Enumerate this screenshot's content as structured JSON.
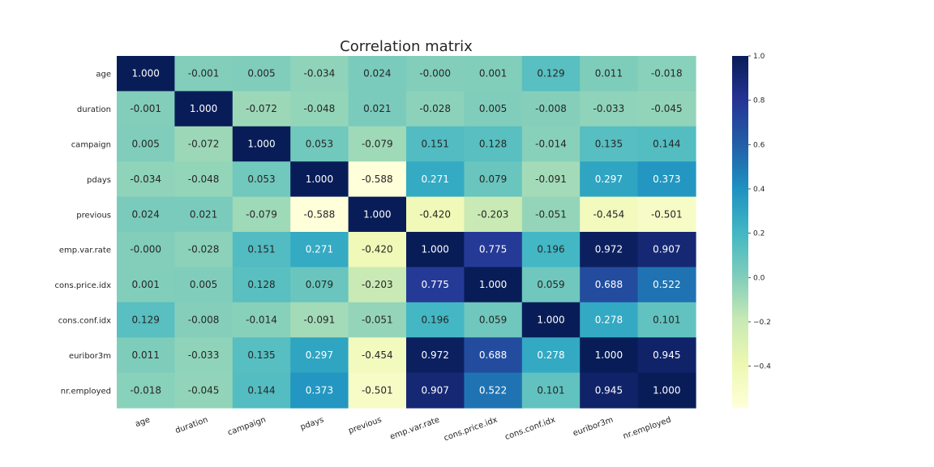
{
  "chart_data": {
    "type": "heatmap",
    "title": "Correlation matrix",
    "labels": [
      "age",
      "duration",
      "campaign",
      "pdays",
      "previous",
      "emp.var.rate",
      "cons.price.idx",
      "cons.conf.idx",
      "euribor3m",
      "nr.employed"
    ],
    "cell_text": [
      [
        "1.000",
        "-0.001",
        "0.005",
        "-0.034",
        "0.024",
        "-0.000",
        "0.001",
        "0.129",
        "0.011",
        "-0.018"
      ],
      [
        "-0.001",
        "1.000",
        "-0.072",
        "-0.048",
        "0.021",
        "-0.028",
        "0.005",
        "-0.008",
        "-0.033",
        "-0.045"
      ],
      [
        "0.005",
        "-0.072",
        "1.000",
        "0.053",
        "-0.079",
        "0.151",
        "0.128",
        "-0.014",
        "0.135",
        "0.144"
      ],
      [
        "-0.034",
        "-0.048",
        "0.053",
        "1.000",
        "-0.588",
        "0.271",
        "0.079",
        "-0.091",
        "0.297",
        "0.373"
      ],
      [
        "0.024",
        "0.021",
        "-0.079",
        "-0.588",
        "1.000",
        "-0.420",
        "-0.203",
        "-0.051",
        "-0.454",
        "-0.501"
      ],
      [
        "-0.000",
        "-0.028",
        "0.151",
        "0.271",
        "-0.420",
        "1.000",
        "0.775",
        "0.196",
        "0.972",
        "0.907"
      ],
      [
        "0.001",
        "0.005",
        "0.128",
        "0.079",
        "-0.203",
        "0.775",
        "1.000",
        "0.059",
        "0.688",
        "0.522"
      ],
      [
        "0.129",
        "-0.008",
        "-0.014",
        "-0.091",
        "-0.051",
        "0.196",
        "0.059",
        "1.000",
        "0.278",
        "0.101"
      ],
      [
        "0.011",
        "-0.033",
        "0.135",
        "0.297",
        "-0.454",
        "0.972",
        "0.688",
        "0.278",
        "1.000",
        "0.945"
      ],
      [
        "-0.018",
        "-0.045",
        "0.144",
        "0.373",
        "-0.501",
        "0.907",
        "0.522",
        "0.101",
        "0.945",
        "1.000"
      ]
    ],
    "colorbar": {
      "range": [
        -0.588,
        1.0
      ],
      "ticks": [
        1.0,
        0.8,
        0.6,
        0.4,
        0.2,
        0.0,
        -0.2,
        -0.4
      ],
      "tick_labels": [
        "1.0",
        "0.8",
        "0.6",
        "0.4",
        "0.2",
        "0.0",
        "−0.2",
        "−0.4"
      ],
      "colormap": "YlGnBu"
    },
    "grid": false
  }
}
